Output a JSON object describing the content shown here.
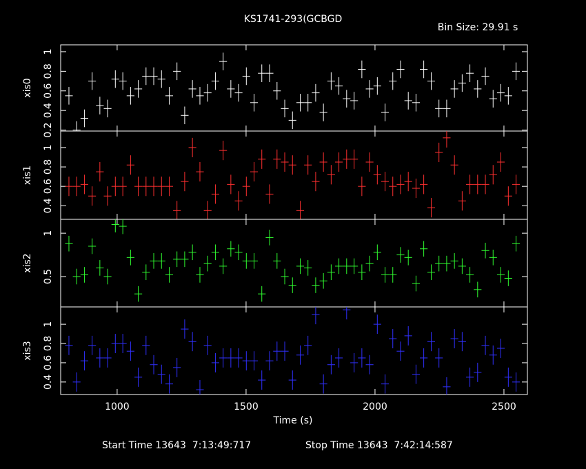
{
  "chart_data": {
    "type": "errorbar",
    "title": "KS1741-293(GCBGD",
    "bin_size": "Bin Size: 29.91 s",
    "xlabel": "Time (s)",
    "start_time": "Start Time 13643  7:13:49:717",
    "stop_time": "Stop Time 13643  7:42:14:587",
    "xlim": [
      781,
      2591
    ],
    "xticks": [
      1000,
      1500,
      2000,
      2500
    ],
    "xerr": 14.955,
    "x": [
      813,
      843,
      873,
      903,
      933,
      963,
      993,
      1022,
      1052,
      1082,
      1112,
      1142,
      1172,
      1202,
      1232,
      1262,
      1292,
      1321,
      1351,
      1381,
      1411,
      1441,
      1471,
      1501,
      1531,
      1561,
      1591,
      1620,
      1650,
      1680,
      1710,
      1740,
      1770,
      1800,
      1830,
      1860,
      1890,
      1919,
      1949,
      1979,
      2009,
      2039,
      2069,
      2099,
      2129,
      2159,
      2189,
      2218,
      2248,
      2278,
      2308,
      2338,
      2368,
      2398,
      2428,
      2458,
      2488,
      2517,
      2547
    ],
    "panels": [
      {
        "name": "xis0",
        "color": "#ffffff",
        "ylim": [
          0.19,
          1.07
        ],
        "yticks": [
          0.2,
          0.4,
          0.6,
          0.8,
          1
        ],
        "yerr": 0.09,
        "values": [
          0.55,
          0.2,
          0.32,
          0.7,
          0.45,
          0.42,
          0.72,
          0.7,
          0.55,
          0.62,
          0.75,
          0.75,
          0.72,
          0.55,
          0.8,
          0.35,
          0.62,
          0.55,
          0.58,
          0.7,
          0.9,
          0.62,
          0.58,
          0.75,
          0.48,
          0.78,
          0.78,
          0.6,
          0.42,
          0.3,
          0.48,
          0.48,
          0.58,
          0.38,
          0.7,
          0.65,
          0.52,
          0.5,
          0.82,
          0.62,
          0.65,
          0.38,
          0.7,
          0.82,
          0.5,
          0.48,
          0.82,
          0.7,
          0.42,
          0.42,
          0.62,
          0.68,
          0.78,
          0.62,
          0.75,
          0.52,
          0.58,
          0.55,
          0.8
        ]
      },
      {
        "name": "xis1",
        "color": "#ff3030",
        "ylim": [
          0.26,
          1.17
        ],
        "yticks": [
          0.4,
          0.6,
          0.8,
          1
        ],
        "yerr": 0.1,
        "values": [
          0.6,
          0.6,
          0.62,
          0.5,
          0.75,
          0.5,
          0.6,
          0.6,
          0.82,
          0.6,
          0.6,
          0.6,
          0.6,
          0.6,
          0.35,
          0.65,
          1.0,
          0.75,
          0.35,
          0.52,
          0.97,
          0.62,
          0.45,
          0.6,
          0.75,
          0.88,
          0.52,
          0.88,
          0.85,
          0.82,
          0.35,
          0.82,
          0.65,
          0.85,
          0.72,
          0.85,
          0.88,
          0.88,
          0.6,
          0.85,
          0.72,
          0.65,
          0.6,
          0.62,
          0.65,
          0.58,
          0.62,
          0.38,
          0.95,
          1.1,
          0.82,
          0.45,
          0.62,
          0.62,
          0.62,
          0.72,
          0.85,
          0.5,
          0.62
        ]
      },
      {
        "name": "xis2",
        "color": "#30ff30",
        "ylim": [
          0.15,
          1.16
        ],
        "yticks": [
          0.5,
          1
        ],
        "yerr": 0.09,
        "values": [
          0.88,
          0.5,
          0.52,
          0.85,
          0.6,
          0.5,
          1.1,
          1.08,
          0.72,
          0.3,
          0.55,
          0.68,
          0.68,
          0.52,
          0.7,
          0.7,
          0.78,
          0.52,
          0.65,
          0.78,
          0.62,
          0.82,
          0.78,
          0.68,
          0.68,
          0.3,
          0.95,
          0.68,
          0.5,
          0.4,
          0.62,
          0.6,
          0.4,
          0.45,
          0.55,
          0.62,
          0.62,
          0.62,
          0.55,
          0.65,
          0.78,
          0.52,
          0.52,
          0.75,
          0.72,
          0.42,
          0.82,
          0.55,
          0.65,
          0.65,
          0.68,
          0.62,
          0.52,
          0.35,
          0.8,
          0.72,
          0.52,
          0.48,
          0.88
        ]
      },
      {
        "name": "xis3",
        "color": "#3030ff",
        "ylim": [
          0.27,
          1.18
        ],
        "yticks": [
          0.4,
          0.6,
          0.8,
          1
        ],
        "yerr": 0.1,
        "values": [
          0.78,
          0.4,
          0.62,
          0.78,
          0.65,
          0.65,
          0.8,
          0.8,
          0.72,
          0.45,
          0.78,
          0.58,
          0.48,
          0.38,
          0.55,
          0.95,
          0.82,
          0.32,
          0.78,
          0.6,
          0.65,
          0.65,
          0.65,
          0.62,
          0.62,
          0.42,
          0.62,
          0.72,
          0.72,
          0.42,
          0.68,
          0.78,
          1.1,
          0.38,
          0.58,
          0.65,
          1.15,
          0.6,
          0.65,
          0.58,
          1.0,
          0.38,
          0.85,
          0.72,
          0.88,
          0.48,
          0.65,
          0.82,
          0.65,
          0.35,
          0.85,
          0.82,
          0.45,
          0.5,
          0.78,
          0.68,
          0.75,
          0.45,
          0.4
        ]
      }
    ]
  }
}
